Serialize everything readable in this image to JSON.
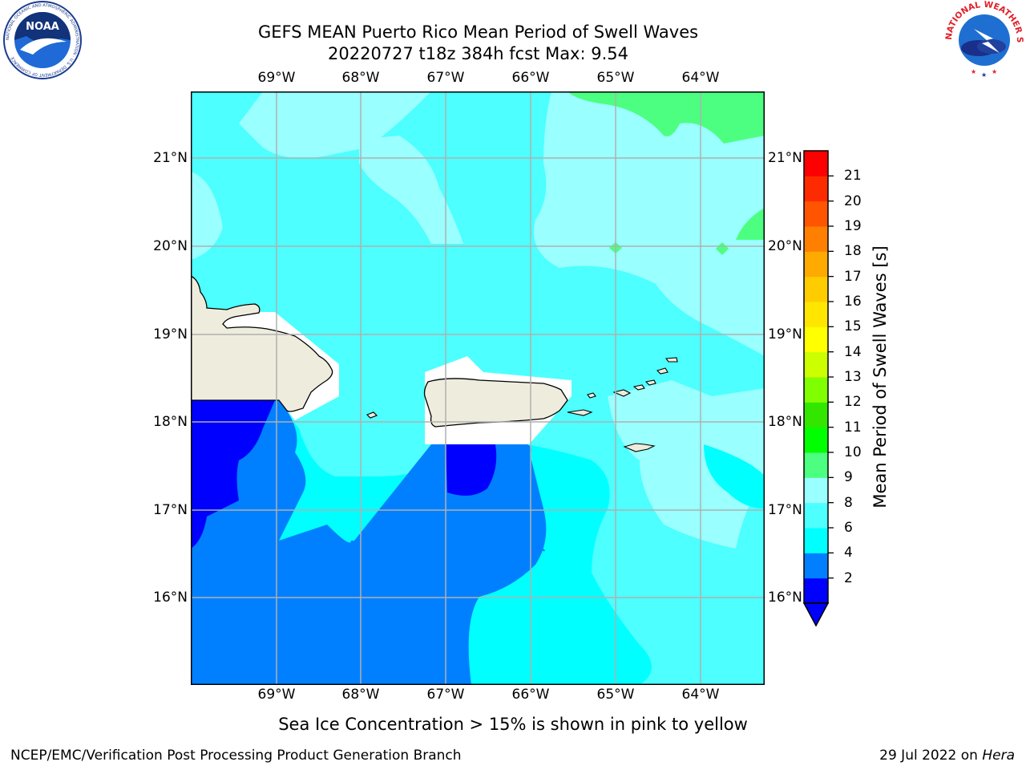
{
  "header": {
    "title_line1": "GEFS MEAN Puerto Rico Mean Period of Swell Waves",
    "title_line2": "20220727 t18z 384h fcst   Max: 9.54"
  },
  "map": {
    "lon_labels": [
      "69°W",
      "68°W",
      "67°W",
      "66°W",
      "65°W",
      "64°W"
    ],
    "lat_labels": [
      "21°N",
      "20°N",
      "19°N",
      "18°N",
      "17°N",
      "16°N"
    ],
    "land_color": "#eeecdc",
    "masked_color": "#ffffff"
  },
  "colorbar": {
    "label": "Mean Period of Swell Waves [s]",
    "ticks": [
      "2",
      "4",
      "6",
      "8",
      "9",
      "10",
      "11",
      "12",
      "13",
      "14",
      "15",
      "16",
      "17",
      "18",
      "19",
      "20",
      "21"
    ],
    "colors": [
      "#0000ff",
      "#0080ff",
      "#00ffff",
      "#4dffff",
      "#99ffff",
      "#4dff80",
      "#00ff00",
      "#33e600",
      "#80ff00",
      "#ccff00",
      "#ffff00",
      "#ffe600",
      "#ffcc00",
      "#ffaa00",
      "#ff8000",
      "#ff5500",
      "#ff2b00",
      "#ff0000"
    ],
    "under_color": "#0000ff"
  },
  "annotation": "Sea Ice Concentration > 15% is shown in pink to yellow",
  "footer": {
    "left": "NCEP/EMC/Verification Post Processing Product Generation Branch",
    "right_date": "29 Jul 2022 on ",
    "right_host": "Hera"
  },
  "logos": {
    "noaa_text": "NOAA",
    "noaa_ring": "NATIONAL OCEANIC AND ATMOSPHERIC ADMINISTRATION · U.S. DEPARTMENT OF COMMERCE",
    "nws_ring": "NATIONAL WEATHER SERVICE"
  }
}
